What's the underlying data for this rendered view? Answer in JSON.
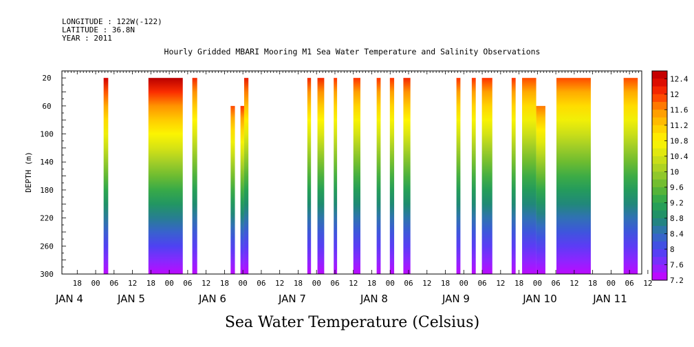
{
  "header": {
    "longitude": "LONGITUDE : 122W(-122)",
    "latitude": "LATITUDE : 36.8N",
    "year": "YEAR : 2011"
  },
  "chart_data": {
    "type": "heatmap",
    "title": "Hourly Gridded MBARI Mooring M1 Sea Water Temperature and Salinity Observations",
    "xlabel": "",
    "ylabel": "DEPTH (m)",
    "footer_label": "Sea Water Temperature (Celsius)",
    "x_hour_ticks": [
      "18",
      "00",
      "06",
      "12",
      "18",
      "00",
      "06",
      "12",
      "18",
      "00",
      "06",
      "12",
      "18",
      "00",
      "06",
      "12",
      "18",
      "00",
      "06",
      "12",
      "18",
      "00",
      "06",
      "12",
      "18",
      "00",
      "06",
      "12",
      "18",
      "00",
      "06",
      "12"
    ],
    "x_day_labels": [
      "JAN  4",
      "JAN  5",
      "JAN  6",
      "JAN  7",
      "JAN  8",
      "JAN  9",
      "JAN 10",
      "JAN 11"
    ],
    "x_range_hours": [
      61,
      250
    ],
    "y_ticks": [
      "20",
      "60",
      "100",
      "140",
      "180",
      "220",
      "260",
      "300"
    ],
    "y_range": [
      300,
      10
    ],
    "colorbar": {
      "levels": [
        "12.4",
        "12",
        "11.6",
        "11.2",
        "10.8",
        "10.4",
        "10",
        "9.6",
        "9.2",
        "8.8",
        "8.4",
        "8",
        "7.6",
        "7.2"
      ],
      "range": [
        7.2,
        12.6
      ]
    },
    "blocks": [
      {
        "start": 74.6,
        "end": 76.1,
        "top_depth": 20,
        "surface_temp": 12.4
      },
      {
        "start": 89.2,
        "end": 100.4,
        "top_depth": 20,
        "surface_temp": 12.6
      },
      {
        "start": 103.5,
        "end": 105.1,
        "top_depth": 20,
        "surface_temp": 12.1
      },
      {
        "start": 116.0,
        "end": 117.4,
        "top_depth": 60,
        "surface_temp": 11.9
      },
      {
        "start": 119.2,
        "end": 120.4,
        "top_depth": 60,
        "surface_temp": 12.0
      },
      {
        "start": 120.4,
        "end": 121.8,
        "top_depth": 20,
        "surface_temp": 12.2
      },
      {
        "start": 141.0,
        "end": 142.2,
        "top_depth": 20,
        "surface_temp": 12.1
      },
      {
        "start": 144.3,
        "end": 146.5,
        "top_depth": 20,
        "surface_temp": 12.1
      },
      {
        "start": 149.6,
        "end": 150.7,
        "top_depth": 20,
        "surface_temp": 12.0
      },
      {
        "start": 156.0,
        "end": 158.3,
        "top_depth": 20,
        "surface_temp": 12.0
      },
      {
        "start": 163.6,
        "end": 164.9,
        "top_depth": 20,
        "surface_temp": 12.0
      },
      {
        "start": 167.9,
        "end": 169.3,
        "top_depth": 20,
        "surface_temp": 12.0
      },
      {
        "start": 172.3,
        "end": 174.6,
        "top_depth": 20,
        "surface_temp": 12.1
      },
      {
        "start": 189.6,
        "end": 190.9,
        "top_depth": 20,
        "surface_temp": 12.0
      },
      {
        "start": 194.6,
        "end": 195.9,
        "top_depth": 20,
        "surface_temp": 12.0
      },
      {
        "start": 197.9,
        "end": 201.3,
        "top_depth": 20,
        "surface_temp": 12.0
      },
      {
        "start": 207.6,
        "end": 208.9,
        "top_depth": 20,
        "surface_temp": 12.0
      },
      {
        "start": 211.0,
        "end": 215.6,
        "top_depth": 20,
        "surface_temp": 11.9
      },
      {
        "start": 215.6,
        "end": 218.6,
        "top_depth": 60,
        "surface_temp": 11.7
      },
      {
        "start": 222.2,
        "end": 233.4,
        "top_depth": 20,
        "surface_temp": 11.9
      },
      {
        "start": 244.1,
        "end": 248.7,
        "top_depth": 20,
        "surface_temp": 11.9
      }
    ]
  }
}
